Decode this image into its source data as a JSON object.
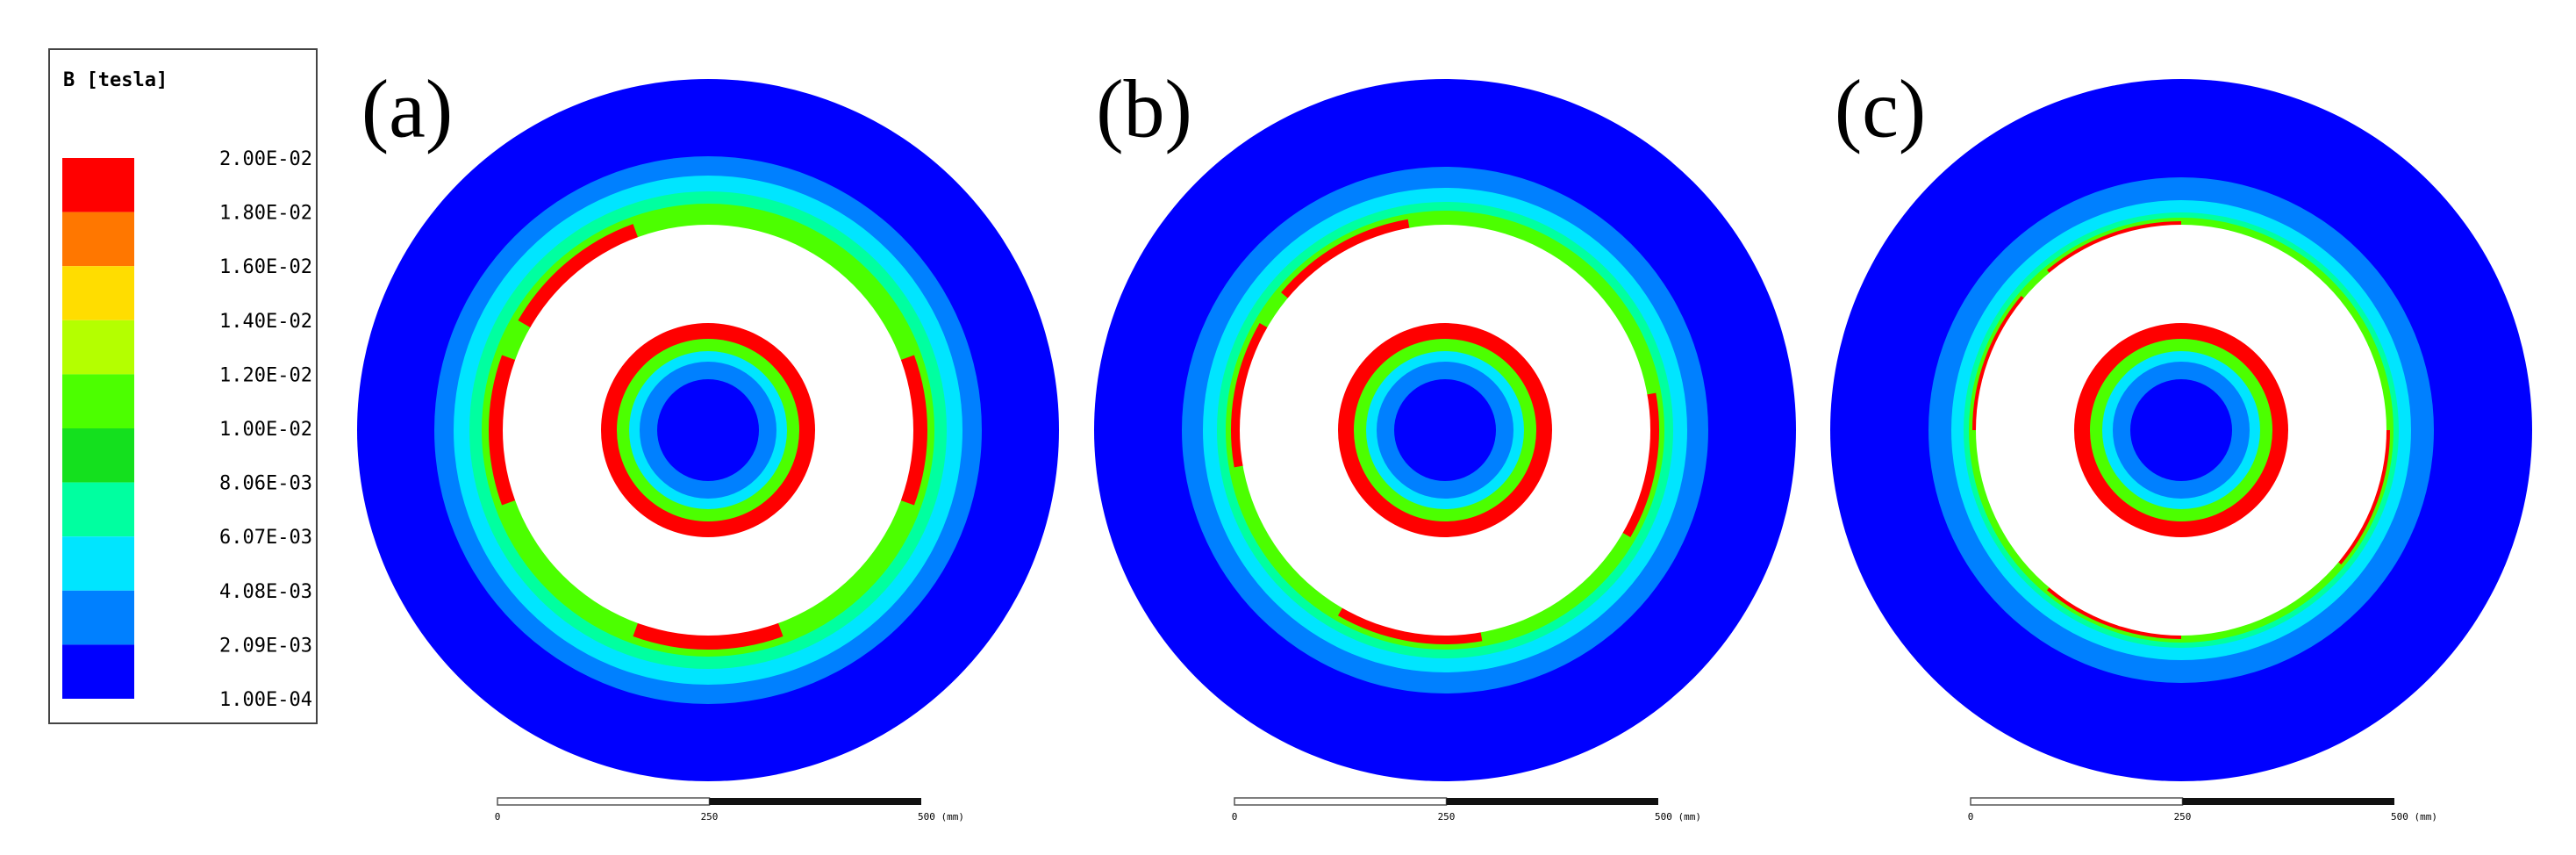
{
  "legend": {
    "title": "B [tesla]",
    "labels": [
      "2.00E-02",
      "1.80E-02",
      "1.60E-02",
      "1.40E-02",
      "1.20E-02",
      "1.00E-02",
      "8.06E-03",
      "6.07E-03",
      "4.08E-03",
      "2.09E-03",
      "1.00E-04"
    ],
    "colors": [
      "#ff0000",
      "#ff7700",
      "#ffdd00",
      "#b4ff00",
      "#4cff00",
      "#14e01e",
      "#00ffa0",
      "#00e5ff",
      "#0080ff",
      "#0000ff"
    ]
  },
  "panels": [
    {
      "label": "(a)",
      "scale": [
        "0",
        "250",
        "500 (mm)"
      ]
    },
    {
      "label": "(b)",
      "scale": [
        "0",
        "250",
        "500 (mm)"
      ]
    },
    {
      "label": "(c)",
      "scale": [
        "0",
        "250",
        "500 (mm)"
      ]
    }
  ]
}
